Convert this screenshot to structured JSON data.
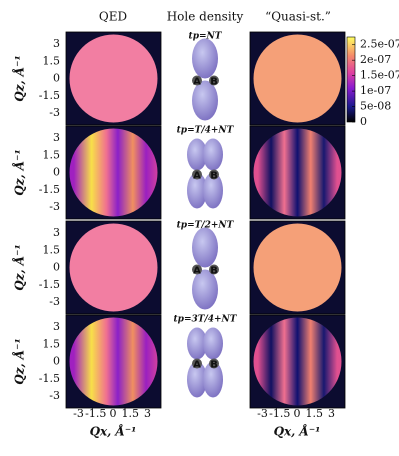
{
  "columns": [
    "QED",
    "Hole density",
    "“Quasi-st.”"
  ],
  "y_label": "Qz, Å⁻¹",
  "x_label": "Qx, Å⁻¹",
  "axis_ticks": [
    -3,
    -1.5,
    0,
    1.5,
    3
  ],
  "site_labels": [
    "A",
    "B"
  ],
  "rows": [
    {
      "time_label": "tp=NT"
    },
    {
      "time_label": "tp=T/4+NT"
    },
    {
      "time_label": "tp=T/2+NT"
    },
    {
      "time_label": "tp=3T/4+NT"
    }
  ],
  "colorbar": {
    "lim": [
      0,
      2.75e-07
    ],
    "ticks": [
      0,
      {
        "value": 5e-08,
        "label": "5e-08"
      },
      {
        "value": 1e-07,
        "label": "1e-07"
      },
      {
        "value": 1.5e-07,
        "label": "1.5e-07"
      },
      {
        "value": 2e-07,
        "label": "2e-07"
      },
      {
        "value": 2.5e-07,
        "label": "2.5e-07"
      }
    ]
  }
}
